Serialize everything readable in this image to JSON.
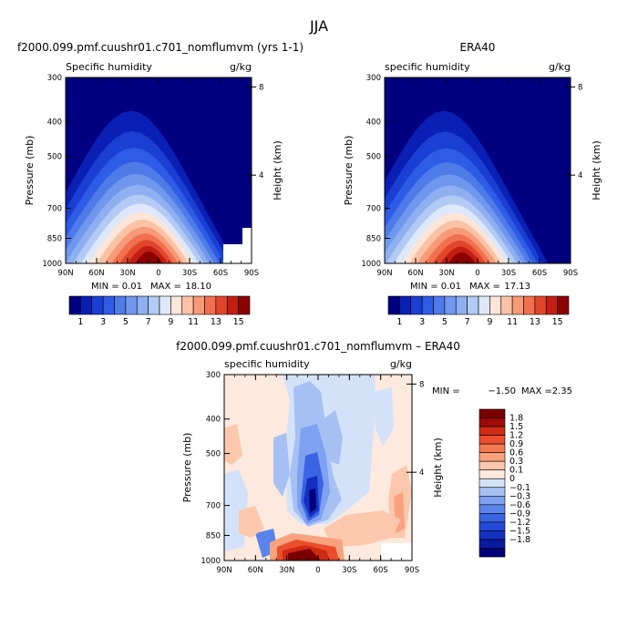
{
  "figure": {
    "title": "JJA"
  },
  "colors": {
    "full_field": [
      "#000080",
      "#0a1fb4",
      "#1a3fd2",
      "#2e5ce6",
      "#4f7be8",
      "#6f97ed",
      "#8fb0f0",
      "#b3caf5",
      "#dde8fa",
      "#fde6d8",
      "#fbc2a5",
      "#f79a77",
      "#f2704f",
      "#e1462c",
      "#c21f12",
      "#8b0000"
    ],
    "difference": [
      "#00007a",
      "#0a1a9c",
      "#1530c0",
      "#2448d8",
      "#3a64e4",
      "#5a84ec",
      "#7ea2f0",
      "#a6c0f4",
      "#d3e2f9",
      "#fde9dd",
      "#fbc7ad",
      "#f8a27e",
      "#f47a52",
      "#ec4e2b",
      "#cf2a14",
      "#9e0a06",
      "#7a0000"
    ]
  },
  "chart_data": [
    {
      "type": "heatmap",
      "title": "f2000.099.pmf.cuushr01.c701_nomflumvm (yrs 1-1)",
      "subtitle_left": "Specific humidity",
      "subtitle_right": "g/kg",
      "ylabel": "Pressure (mb)",
      "ylabel_right": "Height (km)",
      "x_tick_labels": [
        "90N",
        "60N",
        "30N",
        "0",
        "30S",
        "60S",
        "90S"
      ],
      "x_tick_values": [
        90,
        60,
        30,
        0,
        -30,
        -60,
        -90
      ],
      "y_tick_labels": [
        "300",
        "400",
        "500",
        "700",
        "850",
        "1000"
      ],
      "y_tick_values": [
        300,
        400,
        500,
        700,
        850,
        1000
      ],
      "y_right_tick_labels": [
        "8",
        "4"
      ],
      "y_right_tick_values": [
        8,
        4
      ],
      "xlim": [
        90,
        -90
      ],
      "ylim": [
        1000,
        300
      ],
      "y_scale": "log",
      "stats": {
        "min_label": "MIN =",
        "min": "0.01",
        "max_label": "MAX =",
        "max": "18.10"
      },
      "peak": {
        "lat": 7,
        "pressure": 960,
        "value": 18.1
      },
      "colorbar": {
        "levels": [
          1,
          2,
          3,
          4,
          5,
          6,
          7,
          8,
          9,
          10,
          11,
          12,
          13,
          14,
          15
        ],
        "labels": [
          "1",
          "3",
          "5",
          "7",
          "9",
          "11",
          "13",
          "15"
        ],
        "orientation": "horizontal"
      }
    },
    {
      "type": "heatmap",
      "title": "ERA40",
      "subtitle_left": "specific humidity",
      "subtitle_right": "g/kg",
      "ylabel": "Pressure (mb)",
      "ylabel_right": "Height (km)",
      "x_tick_labels": [
        "90N",
        "60N",
        "30N",
        "0",
        "30S",
        "60S",
        "90S"
      ],
      "x_tick_values": [
        90,
        60,
        30,
        0,
        -30,
        -60,
        -90
      ],
      "y_tick_labels": [
        "300",
        "400",
        "500",
        "700",
        "850",
        "1000"
      ],
      "y_tick_values": [
        300,
        400,
        500,
        700,
        850,
        1000
      ],
      "y_right_tick_labels": [
        "8",
        "4"
      ],
      "y_right_tick_values": [
        8,
        4
      ],
      "xlim": [
        90,
        -90
      ],
      "ylim": [
        1000,
        300
      ],
      "y_scale": "log",
      "stats": {
        "min_label": "MIN =",
        "min": "0.01",
        "max_label": "MAX =",
        "max": "17.13"
      },
      "peak": {
        "lat": 13,
        "pressure": 965,
        "value": 17.13
      },
      "colorbar": {
        "levels": [
          1,
          2,
          3,
          4,
          5,
          6,
          7,
          8,
          9,
          10,
          11,
          12,
          13,
          14,
          15
        ],
        "labels": [
          "1",
          "3",
          "5",
          "7",
          "9",
          "11",
          "13",
          "15"
        ],
        "orientation": "horizontal"
      }
    },
    {
      "type": "heatmap",
      "title": "f2000.099.pmf.cuushr01.c701_nomflumvm – ERA40",
      "subtitle_left": "specific humidity",
      "subtitle_right": "g/kg",
      "ylabel": "Pressure (mb)",
      "ylabel_right": "Height (km)",
      "x_tick_labels": [
        "90N",
        "60N",
        "30N",
        "0",
        "30S",
        "60S",
        "90S"
      ],
      "x_tick_values": [
        90,
        60,
        30,
        0,
        -30,
        -60,
        -90
      ],
      "y_tick_labels": [
        "300",
        "400",
        "500",
        "700",
        "850",
        "1000"
      ],
      "y_tick_values": [
        300,
        400,
        500,
        700,
        850,
        1000
      ],
      "y_right_tick_labels": [
        "8",
        "4"
      ],
      "y_right_tick_values": [
        8,
        4
      ],
      "xlim": [
        90,
        -90
      ],
      "ylim": [
        1000,
        300
      ],
      "y_scale": "log",
      "stats": {
        "min_label": "MIN =",
        "min": "−1.50",
        "max_label": "MAX =",
        "max": "2.35"
      },
      "colorbar": {
        "orientation": "vertical",
        "levels": [
          1.8,
          1.5,
          1.2,
          0.9,
          0.6,
          0.3,
          0.1,
          0,
          -0.1,
          -0.3,
          -0.6,
          -0.9,
          -1.2,
          -1.5,
          -1.8
        ],
        "labels": [
          "1.8",
          "1.5",
          "1.2",
          "0.9",
          "0.6",
          "0.3",
          "0.1",
          "0",
          "−0.1",
          "−0.3",
          "−0.6",
          "−0.9",
          "−1.2",
          "−1.5",
          "−1.8"
        ]
      },
      "features": [
        {
          "kind": "positive",
          "lat": 22,
          "pressure": 990,
          "value": 2.35
        },
        {
          "kind": "negative",
          "lat": 5,
          "pressure": 800,
          "value": -1.5
        },
        {
          "kind": "positive",
          "lat": -15,
          "pressure": 880,
          "value": 0.9
        },
        {
          "kind": "negative",
          "lat": 5,
          "pressure": 500,
          "value": -0.6
        },
        {
          "kind": "positive",
          "lat": -75,
          "pressure": 820,
          "value": 0.6
        }
      ]
    }
  ]
}
